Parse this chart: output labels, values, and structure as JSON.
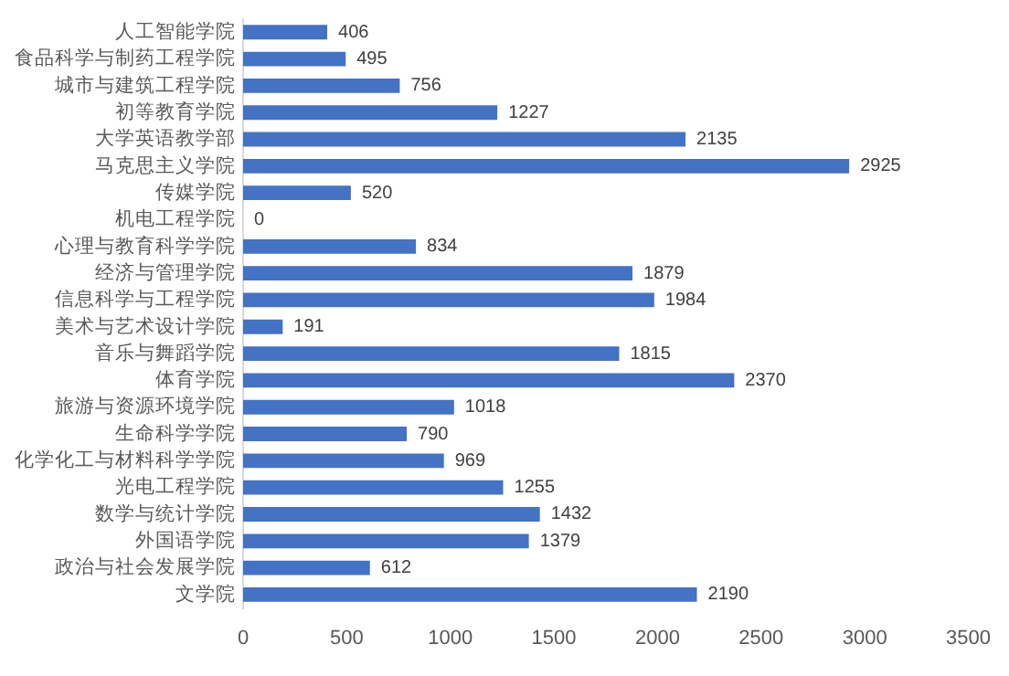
{
  "chart_data": {
    "type": "bar",
    "orientation": "horizontal",
    "categories": [
      "人工智能学院",
      "食品科学与制药工程学院",
      "城市与建筑工程学院",
      "初等教育学院",
      "大学英语教学部",
      "马克思主义学院",
      "传媒学院",
      "机电工程学院",
      "心理与教育科学学院",
      "经济与管理学院",
      "信息科学与工程学院",
      "美术与艺术设计学院",
      "音乐与舞蹈学院",
      "体育学院",
      "旅游与资源环境学院",
      "生命科学学院",
      "化学化工与材料科学学院",
      "光电工程学院",
      "数学与统计学院",
      "外国语学院",
      "政治与社会发展学院",
      "文学院"
    ],
    "values": [
      406,
      495,
      756,
      1227,
      2135,
      2925,
      520,
      0,
      834,
      1879,
      1984,
      191,
      1815,
      2370,
      1018,
      790,
      969,
      1255,
      1432,
      1379,
      612,
      2190
    ],
    "color": "#4472c4",
    "xlim": [
      0,
      3500
    ],
    "xticks": [
      0,
      500,
      1000,
      1500,
      2000,
      2500,
      3000,
      3500
    ],
    "grid": false,
    "data_labels": true,
    "legend": false
  }
}
